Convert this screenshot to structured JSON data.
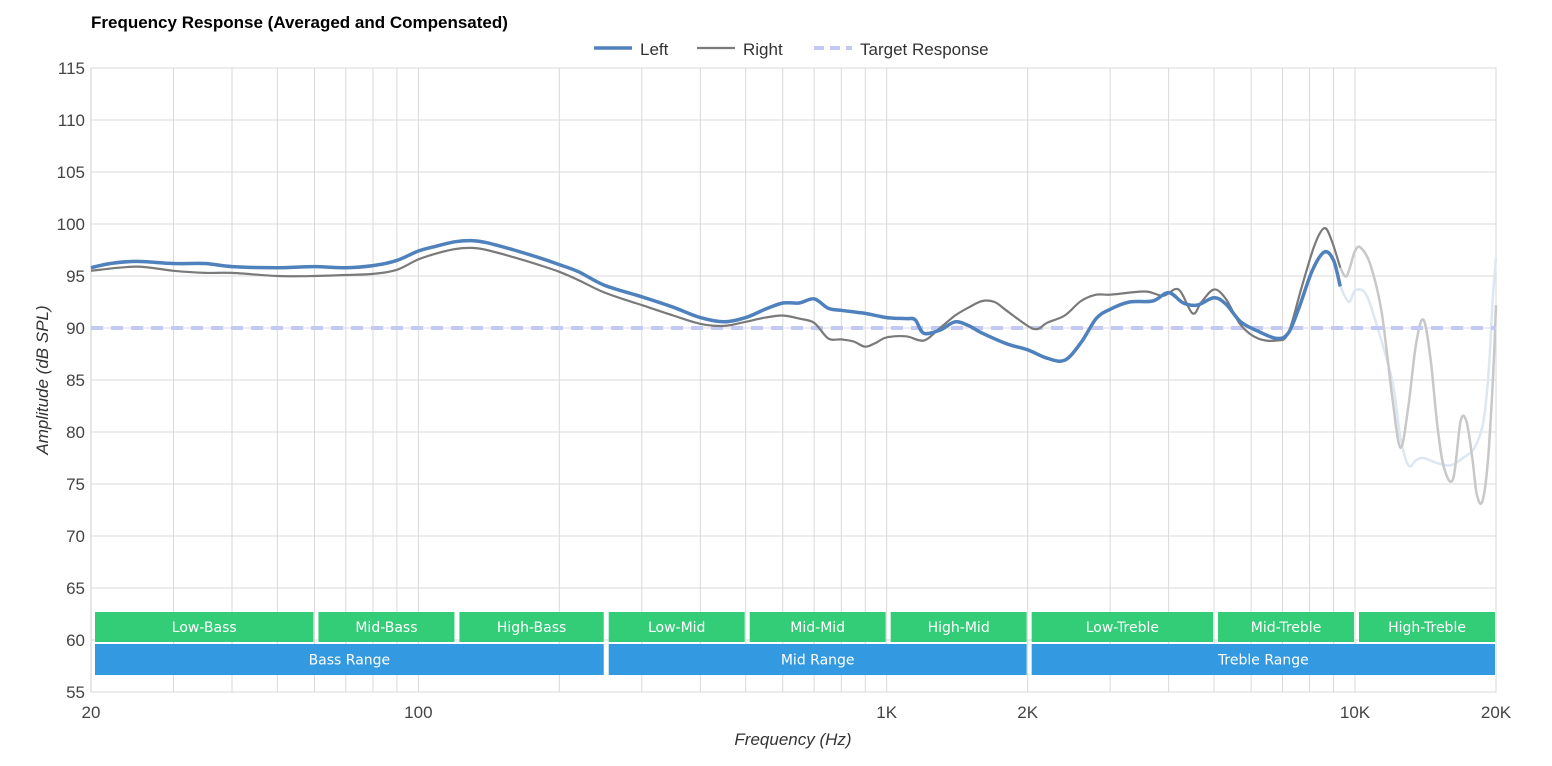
{
  "chart_data": {
    "type": "line",
    "title": "Frequency Response (Averaged and Compensated)",
    "xlabel": "Frequency (Hz)",
    "ylabel": "Amplitude (dB SPL)",
    "x_scale": "log",
    "xlim": [
      20,
      20000
    ],
    "ylim": [
      55,
      115
    ],
    "grid": true,
    "legend_position": "top-center",
    "x_ticks": [
      {
        "value": 20,
        "label": "20"
      },
      {
        "value": 100,
        "label": "100"
      },
      {
        "value": 1000,
        "label": "1K"
      },
      {
        "value": 2000,
        "label": "2K"
      },
      {
        "value": 10000,
        "label": "10K"
      },
      {
        "value": 20000,
        "label": "20K"
      }
    ],
    "y_ticks": [
      55,
      60,
      65,
      70,
      75,
      80,
      85,
      90,
      95,
      100,
      105,
      110,
      115
    ],
    "series": [
      {
        "name": "Left",
        "color": "#4f81bd",
        "style": "solid",
        "points": [
          [
            20,
            95.8
          ],
          [
            22,
            96.2
          ],
          [
            25,
            96.4
          ],
          [
            30,
            96.2
          ],
          [
            35,
            96.2
          ],
          [
            40,
            95.9
          ],
          [
            50,
            95.8
          ],
          [
            60,
            95.9
          ],
          [
            70,
            95.8
          ],
          [
            80,
            96.0
          ],
          [
            90,
            96.5
          ],
          [
            100,
            97.4
          ],
          [
            110,
            97.9
          ],
          [
            120,
            98.3
          ],
          [
            130,
            98.4
          ],
          [
            140,
            98.2
          ],
          [
            160,
            97.5
          ],
          [
            180,
            96.8
          ],
          [
            200,
            96.1
          ],
          [
            220,
            95.4
          ],
          [
            250,
            94.1
          ],
          [
            300,
            93.0
          ],
          [
            350,
            92.0
          ],
          [
            400,
            91.0
          ],
          [
            450,
            90.6
          ],
          [
            500,
            91.0
          ],
          [
            550,
            91.8
          ],
          [
            600,
            92.4
          ],
          [
            650,
            92.4
          ],
          [
            700,
            92.8
          ],
          [
            750,
            91.9
          ],
          [
            800,
            91.7
          ],
          [
            900,
            91.4
          ],
          [
            1000,
            91.0
          ],
          [
            1100,
            90.9
          ],
          [
            1150,
            90.8
          ],
          [
            1200,
            89.5
          ],
          [
            1300,
            89.8
          ],
          [
            1400,
            90.6
          ],
          [
            1500,
            90.2
          ],
          [
            1600,
            89.5
          ],
          [
            1800,
            88.5
          ],
          [
            2000,
            87.9
          ],
          [
            2200,
            87.1
          ],
          [
            2400,
            86.9
          ],
          [
            2600,
            88.6
          ],
          [
            2800,
            90.9
          ],
          [
            3000,
            91.8
          ],
          [
            3300,
            92.5
          ],
          [
            3700,
            92.6
          ],
          [
            4000,
            93.4
          ],
          [
            4300,
            92.4
          ],
          [
            4600,
            92.2
          ],
          [
            5000,
            92.9
          ],
          [
            5300,
            92.3
          ],
          [
            5700,
            90.6
          ],
          [
            6200,
            89.7
          ],
          [
            6800,
            89.0
          ],
          [
            7200,
            89.5
          ],
          [
            7600,
            92.0
          ],
          [
            8100,
            95.5
          ],
          [
            8600,
            97.3
          ],
          [
            9000,
            96.5
          ],
          [
            9300,
            94.0
          ]
        ]
      },
      {
        "name": "Right",
        "color": "#7a7a7a",
        "style": "solid",
        "points": [
          [
            20,
            95.5
          ],
          [
            25,
            95.9
          ],
          [
            30,
            95.5
          ],
          [
            35,
            95.3
          ],
          [
            40,
            95.3
          ],
          [
            50,
            95.0
          ],
          [
            60,
            95.0
          ],
          [
            70,
            95.1
          ],
          [
            80,
            95.2
          ],
          [
            90,
            95.6
          ],
          [
            100,
            96.6
          ],
          [
            110,
            97.2
          ],
          [
            120,
            97.6
          ],
          [
            130,
            97.7
          ],
          [
            140,
            97.5
          ],
          [
            160,
            96.8
          ],
          [
            180,
            96.1
          ],
          [
            200,
            95.4
          ],
          [
            220,
            94.6
          ],
          [
            250,
            93.4
          ],
          [
            300,
            92.2
          ],
          [
            350,
            91.2
          ],
          [
            400,
            90.4
          ],
          [
            450,
            90.2
          ],
          [
            500,
            90.6
          ],
          [
            550,
            91.0
          ],
          [
            600,
            91.2
          ],
          [
            650,
            90.9
          ],
          [
            700,
            90.5
          ],
          [
            750,
            89.0
          ],
          [
            800,
            88.9
          ],
          [
            850,
            88.7
          ],
          [
            900,
            88.2
          ],
          [
            950,
            88.6
          ],
          [
            1000,
            89.1
          ],
          [
            1100,
            89.2
          ],
          [
            1200,
            88.8
          ],
          [
            1300,
            90.0
          ],
          [
            1400,
            91.2
          ],
          [
            1500,
            92.0
          ],
          [
            1600,
            92.6
          ],
          [
            1700,
            92.5
          ],
          [
            1800,
            91.7
          ],
          [
            2000,
            90.2
          ],
          [
            2100,
            89.9
          ],
          [
            2200,
            90.5
          ],
          [
            2400,
            91.2
          ],
          [
            2600,
            92.6
          ],
          [
            2800,
            93.2
          ],
          [
            3000,
            93.2
          ],
          [
            3300,
            93.4
          ],
          [
            3600,
            93.5
          ],
          [
            3900,
            93.1
          ],
          [
            4200,
            93.7
          ],
          [
            4500,
            91.4
          ],
          [
            4700,
            92.5
          ],
          [
            5000,
            93.7
          ],
          [
            5300,
            92.8
          ],
          [
            5700,
            90.3
          ],
          [
            6200,
            89.0
          ],
          [
            6800,
            88.8
          ],
          [
            7200,
            89.5
          ],
          [
            7700,
            94.0
          ],
          [
            8200,
            98.0
          ],
          [
            8600,
            99.6
          ],
          [
            8900,
            98.5
          ],
          [
            9300,
            95.8
          ]
        ]
      },
      {
        "name": "Target Response",
        "color": "#c4c8f5",
        "style": "dashed",
        "points": [
          [
            20,
            90
          ],
          [
            20000,
            90
          ]
        ]
      }
    ],
    "faded_series": [
      {
        "color": "#dde7f2",
        "points": [
          [
            9300,
            94.0
          ],
          [
            9700,
            92.5
          ],
          [
            10000,
            93.6
          ],
          [
            10500,
            93.4
          ],
          [
            11000,
            91.0
          ],
          [
            12000,
            85.0
          ],
          [
            12500,
            79.5
          ],
          [
            13000,
            76.8
          ],
          [
            13500,
            77.3
          ],
          [
            14000,
            77.5
          ],
          [
            15000,
            77.0
          ],
          [
            16000,
            76.8
          ],
          [
            17000,
            77.5
          ],
          [
            18000,
            78.5
          ],
          [
            18800,
            81.0
          ],
          [
            19300,
            86.0
          ],
          [
            19700,
            93.0
          ],
          [
            20000,
            96.8
          ]
        ]
      },
      {
        "color": "#c8c8c8",
        "points": [
          [
            9300,
            95.8
          ],
          [
            9600,
            95.0
          ],
          [
            10000,
            97.4
          ],
          [
            10300,
            97.7
          ],
          [
            10800,
            96.0
          ],
          [
            11400,
            91.5
          ],
          [
            12000,
            83.5
          ],
          [
            12500,
            78.5
          ],
          [
            13000,
            82.5
          ],
          [
            13500,
            88.5
          ],
          [
            14000,
            90.8
          ],
          [
            14500,
            87.0
          ],
          [
            15000,
            80.5
          ],
          [
            15500,
            76.5
          ],
          [
            16200,
            75.5
          ],
          [
            16800,
            81.0
          ],
          [
            17300,
            81.0
          ],
          [
            17800,
            77.5
          ],
          [
            18200,
            74.0
          ],
          [
            18700,
            73.3
          ],
          [
            19200,
            77.0
          ],
          [
            19700,
            85.0
          ],
          [
            20000,
            92.2
          ]
        ]
      }
    ],
    "bands": [
      {
        "label": "Low-Bass",
        "from": 20,
        "to": 60,
        "row": 1,
        "color": "#33cc77"
      },
      {
        "label": "Mid-Bass",
        "from": 60,
        "to": 120,
        "row": 1,
        "color": "#33cc77"
      },
      {
        "label": "High-Bass",
        "from": 120,
        "to": 250,
        "row": 1,
        "color": "#33cc77"
      },
      {
        "label": "Low-Mid",
        "from": 250,
        "to": 500,
        "row": 1,
        "color": "#33cc77"
      },
      {
        "label": "Mid-Mid",
        "from": 500,
        "to": 1000,
        "row": 1,
        "color": "#33cc77"
      },
      {
        "label": "High-Mid",
        "from": 1000,
        "to": 2000,
        "row": 1,
        "color": "#33cc77"
      },
      {
        "label": "Low-Treble",
        "from": 2000,
        "to": 5000,
        "row": 1,
        "color": "#33cc77"
      },
      {
        "label": "Mid-Treble",
        "from": 5000,
        "to": 10000,
        "row": 1,
        "color": "#33cc77"
      },
      {
        "label": "High-Treble",
        "from": 10000,
        "to": 20000,
        "row": 1,
        "color": "#33cc77"
      },
      {
        "label": "Bass Range",
        "from": 20,
        "to": 250,
        "row": 2,
        "color": "#3399e0"
      },
      {
        "label": "Mid Range",
        "from": 250,
        "to": 2000,
        "row": 2,
        "color": "#3399e0"
      },
      {
        "label": "Treble Range",
        "from": 2000,
        "to": 20000,
        "row": 2,
        "color": "#3399e0"
      }
    ]
  }
}
